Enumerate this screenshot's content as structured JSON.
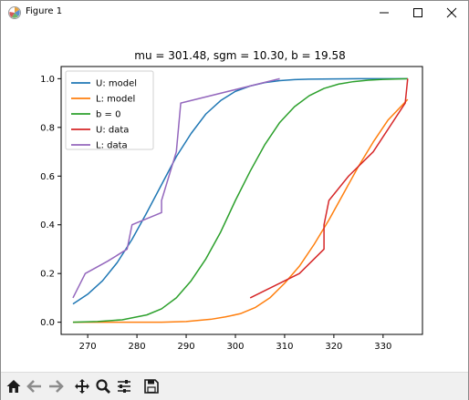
{
  "window": {
    "title": "Figure 1"
  },
  "toolbar": {
    "icons": [
      "home-icon",
      "back-arrow-icon",
      "forward-arrow-icon",
      "pan-move-icon",
      "zoom-magnifier-icon",
      "configure-subplots-icon",
      "save-floppy-icon"
    ]
  },
  "chart_data": {
    "type": "line",
    "title": "mu = 301.48, sgm = 10.30, b = 19.58",
    "xlabel": "",
    "ylabel": "",
    "xlim": [
      264.6,
      338.0
    ],
    "ylim": [
      -0.05,
      1.05
    ],
    "xticks": [
      270,
      280,
      290,
      300,
      310,
      320,
      330
    ],
    "yticks": [
      0.0,
      0.2,
      0.4,
      0.6,
      0.8,
      1.0
    ],
    "xtick_labels": [
      "270",
      "280",
      "290",
      "300",
      "310",
      "320",
      "330"
    ],
    "ytick_labels": [
      "0.0",
      "0.2",
      "0.4",
      "0.6",
      "0.8",
      "1.0"
    ],
    "grid": false,
    "legend_position": "top-left",
    "legend": [
      "U: model",
      "L: model",
      "b = 0",
      "U: data",
      "L: data"
    ],
    "series": [
      {
        "name": "U: model",
        "color": "#1f77b4",
        "x": [
          267,
          270,
          273,
          276,
          279,
          282,
          285,
          288,
          291,
          294,
          297,
          300,
          303,
          306,
          309,
          312,
          315,
          320,
          325,
          330,
          335
        ],
        "y": [
          0.075,
          0.115,
          0.17,
          0.245,
          0.34,
          0.45,
          0.565,
          0.68,
          0.775,
          0.855,
          0.91,
          0.948,
          0.97,
          0.984,
          0.992,
          0.996,
          0.998,
          0.999,
          1.0,
          1.0,
          1.0
        ]
      },
      {
        "name": "L: model",
        "color": "#ff7f0e",
        "x": [
          267,
          275,
          285,
          290,
          295,
          298,
          301,
          304,
          307,
          310,
          313,
          316,
          319,
          322,
          325,
          328,
          331,
          335
        ],
        "y": [
          0.0,
          0.0,
          0.0,
          0.003,
          0.012,
          0.022,
          0.035,
          0.06,
          0.1,
          0.16,
          0.23,
          0.32,
          0.42,
          0.53,
          0.64,
          0.74,
          0.83,
          0.915
        ]
      },
      {
        "name": "b = 0",
        "color": "#2ca02c",
        "x": [
          267,
          272,
          277,
          282,
          285,
          288,
          291,
          294,
          297,
          300,
          303,
          306,
          309,
          312,
          315,
          318,
          321,
          324,
          327,
          330,
          335
        ],
        "y": [
          0.0,
          0.003,
          0.01,
          0.03,
          0.055,
          0.1,
          0.17,
          0.26,
          0.37,
          0.5,
          0.62,
          0.73,
          0.82,
          0.885,
          0.93,
          0.96,
          0.978,
          0.988,
          0.994,
          0.997,
          1.0
        ]
      },
      {
        "name": "U: data",
        "color": "#d62728",
        "x": [
          303,
          313,
          318,
          318,
          319,
          323,
          328,
          334.5,
          335
        ],
        "y": [
          0.1,
          0.2,
          0.3,
          0.4,
          0.5,
          0.6,
          0.7,
          0.9,
          1.0
        ]
      },
      {
        "name": "L: data",
        "color": "#9467bd",
        "x": [
          267,
          269.5,
          274,
          278,
          279,
          285,
          285,
          288,
          288.9,
          309
        ],
        "y": [
          0.1,
          0.2,
          0.25,
          0.3,
          0.4,
          0.45,
          0.5,
          0.7,
          0.9,
          1.0
        ]
      }
    ]
  }
}
